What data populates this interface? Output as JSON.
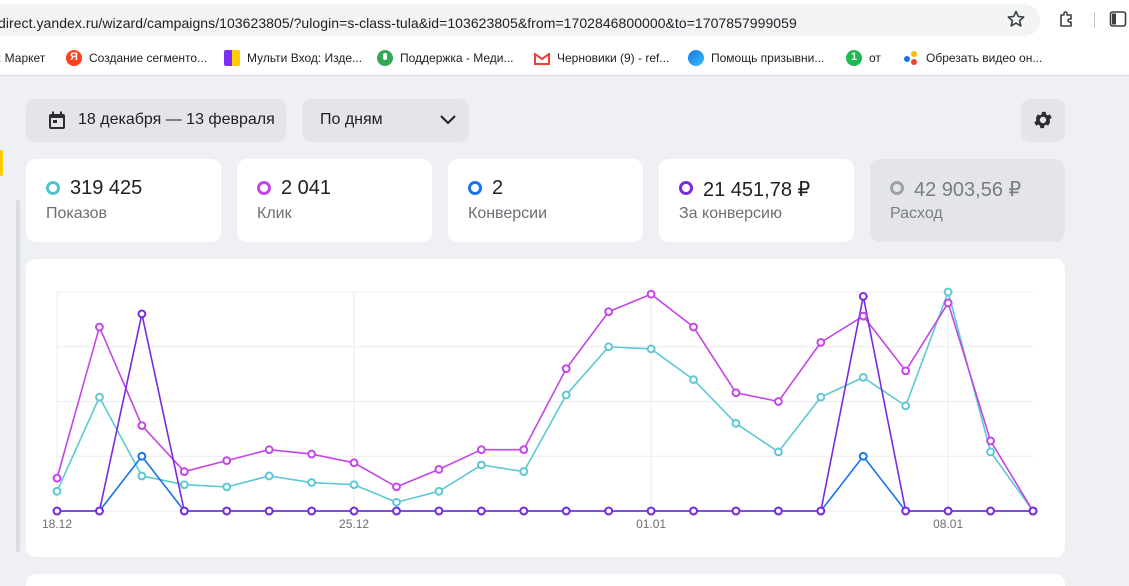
{
  "browser": {
    "url": "direct.yandex.ru/wizard/campaigns/103623805/?ulogin=s-class-tula&id=103623805&from=1702846800000&to=1707857999059",
    "bookmarks": [
      {
        "label": ": Маркет",
        "icon": "market-icon",
        "color": "#ffffff"
      },
      {
        "label": "Создание сегменто...",
        "icon": "yandex-icon",
        "color": "#fc3f1d"
      },
      {
        "label": "Мульти Вход: Изде...",
        "icon": "multi-icon",
        "color": "#7b2ff7"
      },
      {
        "label": "Поддержка - Меди...",
        "icon": "mic-icon",
        "color": "#34a853"
      },
      {
        "label": "Черновики (9) - ref...",
        "icon": "gmail-icon",
        "color": "#ea4335"
      },
      {
        "label": "Помощь призывни...",
        "icon": "edge-icon",
        "color": "#1a73e8"
      },
      {
        "label": "от",
        "icon": "green-one-icon",
        "color": "#1db954"
      },
      {
        "label": "Обрезать видео он...",
        "icon": "dots-icon",
        "color": "#fbbc04"
      }
    ]
  },
  "controls": {
    "date_range": "18 декабря — 13 февраля",
    "period": "По дням"
  },
  "metrics": [
    {
      "value": "319 425",
      "label": "Показов",
      "color": "#4fc3d0",
      "active": true
    },
    {
      "value": "2 041",
      "label": "Клик",
      "color": "#c545e8",
      "active": true
    },
    {
      "value": "2",
      "label": "Конверсии",
      "color": "#1a73e8",
      "active": true
    },
    {
      "value": "21 451,78 ₽",
      "label": "За конверсию",
      "color": "#7b2ae0",
      "active": true
    },
    {
      "value": "42 903,56 ₽",
      "label": "Расход",
      "color": "#9ea1a6",
      "active": false
    }
  ],
  "chart_data": {
    "type": "line",
    "x_labels": [
      "18.12",
      "25.12",
      "01.01",
      "08.01"
    ],
    "x_label_indices": [
      0,
      7,
      14,
      21
    ],
    "ylim": [
      0,
      100
    ],
    "series": [
      {
        "name": "Показов",
        "color": "#5cc9d4",
        "values": [
          9,
          52,
          16,
          12,
          11,
          16,
          13,
          12,
          4,
          9,
          21,
          18,
          53,
          75,
          74,
          60,
          40,
          27,
          52,
          61,
          48,
          100,
          27,
          0
        ]
      },
      {
        "name": "Клик",
        "color": "#c545e8",
        "values": [
          15,
          84,
          39,
          18,
          23,
          28,
          26,
          22,
          11,
          19,
          28,
          28,
          65,
          91,
          99,
          84,
          54,
          50,
          77,
          89,
          64,
          95,
          32,
          0
        ]
      },
      {
        "name": "Конверсии",
        "color": "#1a73e8",
        "values": [
          0,
          0,
          25,
          0,
          0,
          0,
          0,
          0,
          0,
          0,
          0,
          0,
          0,
          0,
          0,
          0,
          0,
          0,
          0,
          25,
          0,
          0,
          0,
          0
        ]
      },
      {
        "name": "За конверсию",
        "color": "#7b2ae0",
        "values": [
          0,
          0,
          90,
          0,
          0,
          0,
          0,
          0,
          0,
          0,
          0,
          0,
          0,
          0,
          0,
          0,
          0,
          0,
          0,
          98,
          0,
          0,
          0,
          0
        ]
      }
    ]
  }
}
